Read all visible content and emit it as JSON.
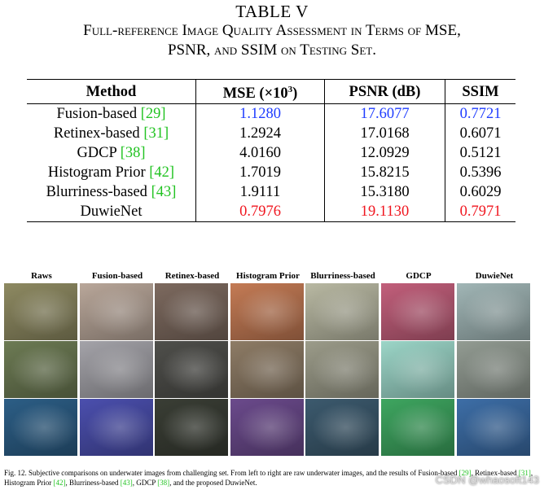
{
  "table_title": "TABLE V",
  "table_caption_line1": "Full-reference Image Quality Assessment in Terms of MSE,",
  "table_caption_line2": "PSNR, and SSIM on Testing Set.",
  "headers": {
    "method": "Method",
    "mse_prefix": "MSE (×10",
    "mse_exp": "3",
    "mse_suffix": ")",
    "psnr": "PSNR (dB)",
    "ssim": "SSIM"
  },
  "rows": [
    {
      "method": "Fusion-based",
      "ref": "[29]",
      "mse": "1.1280",
      "psnr": "17.6077",
      "ssim": "0.7721",
      "color": "blue"
    },
    {
      "method": "Retinex-based",
      "ref": "[31]",
      "mse": "1.2924",
      "psnr": "17.0168",
      "ssim": "0.6071",
      "color": ""
    },
    {
      "method": "GDCP",
      "ref": "[38]",
      "mse": "4.0160",
      "psnr": "12.0929",
      "ssim": "0.5121",
      "color": ""
    },
    {
      "method": "Histogram Prior",
      "ref": "[42]",
      "mse": "1.7019",
      "psnr": "15.8215",
      "ssim": "0.5396",
      "color": ""
    },
    {
      "method": "Blurriness-based",
      "ref": "[43]",
      "mse": "1.9111",
      "psnr": "15.3180",
      "ssim": "0.6029",
      "color": ""
    },
    {
      "method": "DuwieNet",
      "ref": "",
      "mse": "0.7976",
      "psnr": "19.1130",
      "ssim": "0.7971",
      "color": "red"
    }
  ],
  "figure_columns": [
    "Raws",
    "Fusion-based",
    "Retinex-based",
    "Histogram Prior",
    "Blurriness-based",
    "GDCP",
    "DuwieNet"
  ],
  "figure_caption": {
    "part1": "Fig. 12.  Subjective comparisons on underwater images from challenging set. From left to right are raw underwater images, and the results of Fusion-based ",
    "ref1": "[29]",
    "part2": ", Retinex-based ",
    "ref2": "[31]",
    "part3": ", Histogram Prior ",
    "ref3": "[42]",
    "part4": ", Blurriness-based ",
    "ref4": "[43]",
    "part5": ", GDCP ",
    "ref5": "[38]",
    "part6": ", and the proposed DuwieNet."
  },
  "watermark": "CSDN @whaosoft143",
  "image_tints": [
    [
      "#8e8a62",
      "#b9a79a",
      "#7d6a5f",
      "#c47b55",
      "#b9b9a3",
      "#c25f7b",
      "#a1b6b6"
    ],
    [
      "#6d7b54",
      "#a4a3a9",
      "#4f4f4b",
      "#8e7c66",
      "#9c9c8a",
      "#9cd6c8",
      "#939c93"
    ],
    [
      "#2c5e86",
      "#4b4fae",
      "#3a3e35",
      "#6b4a8c",
      "#3c5a6e",
      "#3ea660",
      "#3d6ea7"
    ]
  ]
}
